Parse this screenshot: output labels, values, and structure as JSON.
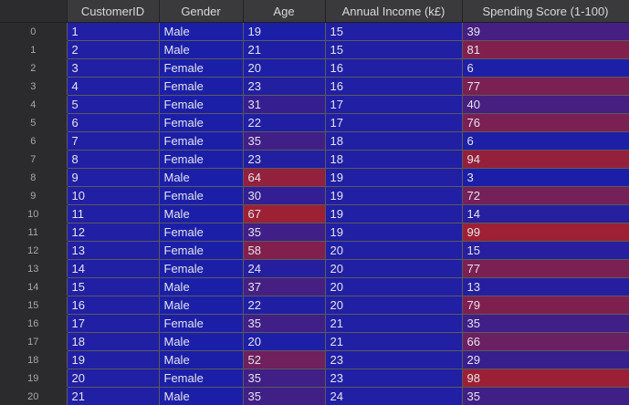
{
  "columns": [
    "",
    "CustomerID",
    "Gender",
    "Age",
    "Annual Income (k£)",
    "Spending Score (1-100)"
  ],
  "rows": [
    {
      "idx": "0",
      "id": "1",
      "gender": "Male",
      "age": "19",
      "income": "15",
      "score": "39"
    },
    {
      "idx": "1",
      "id": "2",
      "gender": "Male",
      "age": "21",
      "income": "15",
      "score": "81"
    },
    {
      "idx": "2",
      "id": "3",
      "gender": "Female",
      "age": "20",
      "income": "16",
      "score": "6"
    },
    {
      "idx": "3",
      "id": "4",
      "gender": "Female",
      "age": "23",
      "income": "16",
      "score": "77"
    },
    {
      "idx": "4",
      "id": "5",
      "gender": "Female",
      "age": "31",
      "income": "17",
      "score": "40"
    },
    {
      "idx": "5",
      "id": "6",
      "gender": "Female",
      "age": "22",
      "income": "17",
      "score": "76"
    },
    {
      "idx": "6",
      "id": "7",
      "gender": "Female",
      "age": "35",
      "income": "18",
      "score": "6"
    },
    {
      "idx": "7",
      "id": "8",
      "gender": "Female",
      "age": "23",
      "income": "18",
      "score": "94"
    },
    {
      "idx": "8",
      "id": "9",
      "gender": "Male",
      "age": "64",
      "income": "19",
      "score": "3"
    },
    {
      "idx": "9",
      "id": "10",
      "gender": "Female",
      "age": "30",
      "income": "19",
      "score": "72"
    },
    {
      "idx": "10",
      "id": "11",
      "gender": "Male",
      "age": "67",
      "income": "19",
      "score": "14"
    },
    {
      "idx": "11",
      "id": "12",
      "gender": "Female",
      "age": "35",
      "income": "19",
      "score": "99"
    },
    {
      "idx": "12",
      "id": "13",
      "gender": "Female",
      "age": "58",
      "income": "20",
      "score": "15"
    },
    {
      "idx": "13",
      "id": "14",
      "gender": "Female",
      "age": "24",
      "income": "20",
      "score": "77"
    },
    {
      "idx": "14",
      "id": "15",
      "gender": "Male",
      "age": "37",
      "income": "20",
      "score": "13"
    },
    {
      "idx": "15",
      "id": "16",
      "gender": "Male",
      "age": "22",
      "income": "20",
      "score": "79"
    },
    {
      "idx": "16",
      "id": "17",
      "gender": "Female",
      "age": "35",
      "income": "21",
      "score": "35"
    },
    {
      "idx": "17",
      "id": "18",
      "gender": "Male",
      "age": "20",
      "income": "21",
      "score": "66"
    },
    {
      "idx": "18",
      "id": "19",
      "gender": "Male",
      "age": "52",
      "income": "23",
      "score": "29"
    },
    {
      "idx": "19",
      "id": "20",
      "gender": "Female",
      "age": "35",
      "income": "23",
      "score": "98"
    },
    {
      "idx": "20",
      "id": "21",
      "gender": "Male",
      "age": "35",
      "income": "24",
      "score": "35"
    }
  ],
  "colors": {
    "cold": "#1b1fa8",
    "hot": "#a8202a",
    "index_bg": "#2b2b2d",
    "header_bg": "#3a3a3d"
  }
}
